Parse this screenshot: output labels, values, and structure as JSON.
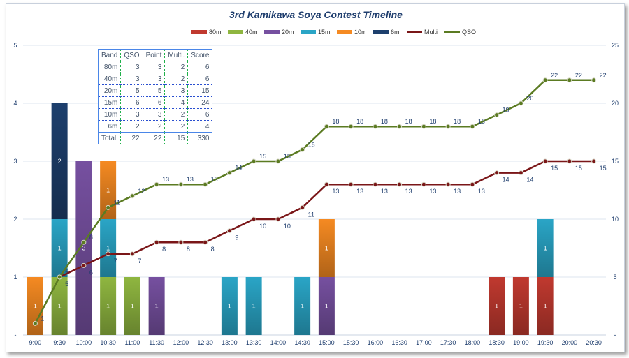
{
  "chart_data": {
    "type": "bar",
    "title": "3rd Kamikawa Soya Contest Timeline",
    "categories": [
      "9:00",
      "9:30",
      "10:00",
      "10:30",
      "11:00",
      "11:30",
      "12:00",
      "12:30",
      "13:00",
      "13:30",
      "14:00",
      "14:30",
      "15:00",
      "15:30",
      "16:00",
      "16:30",
      "17:00",
      "17:30",
      "18:00",
      "18:30",
      "19:00",
      "19:30",
      "20:00",
      "20:30"
    ],
    "y_left": {
      "range": [
        0,
        5
      ],
      "ticks": [
        "-",
        "1",
        "2",
        "3",
        "4",
        "5"
      ]
    },
    "y_right": {
      "range": [
        0,
        25
      ],
      "ticks": [
        "-",
        "5",
        "10",
        "15",
        "20",
        "25"
      ]
    },
    "legend_position": "top",
    "series": [
      {
        "name": "80m",
        "kind": "bar",
        "color": "#c0392f",
        "values": [
          0,
          0,
          0,
          0,
          0,
          0,
          0,
          0,
          0,
          0,
          0,
          0,
          0,
          0,
          0,
          0,
          0,
          0,
          0,
          1,
          1,
          1,
          0,
          0
        ]
      },
      {
        "name": "40m",
        "kind": "bar",
        "color": "#8fb640",
        "values": [
          0,
          1,
          0,
          1,
          1,
          0,
          0,
          0,
          0,
          0,
          0,
          0,
          0,
          0,
          0,
          0,
          0,
          0,
          0,
          0,
          0,
          0,
          0,
          0
        ]
      },
      {
        "name": "20m",
        "kind": "bar",
        "color": "#7650a0",
        "values": [
          0,
          0,
          3,
          0,
          0,
          1,
          0,
          0,
          0,
          0,
          0,
          0,
          1,
          0,
          0,
          0,
          0,
          0,
          0,
          0,
          0,
          0,
          0,
          0
        ]
      },
      {
        "name": "15m",
        "kind": "bar",
        "color": "#2aa5c6",
        "values": [
          0,
          1,
          0,
          1,
          0,
          0,
          0,
          0,
          1,
          1,
          0,
          1,
          0,
          0,
          0,
          0,
          0,
          0,
          0,
          0,
          0,
          1,
          0,
          0
        ]
      },
      {
        "name": "10m",
        "kind": "bar",
        "color": "#f58a22",
        "values": [
          1,
          0,
          0,
          1,
          0,
          0,
          0,
          0,
          0,
          0,
          0,
          0,
          1,
          0,
          0,
          0,
          0,
          0,
          0,
          0,
          0,
          0,
          0,
          0
        ]
      },
      {
        "name": "6m",
        "kind": "bar",
        "color": "#1d3f6d",
        "values": [
          0,
          2,
          0,
          0,
          0,
          0,
          0,
          0,
          0,
          0,
          0,
          0,
          0,
          0,
          0,
          0,
          0,
          0,
          0,
          0,
          0,
          0,
          0,
          0
        ]
      },
      {
        "name": "Multi",
        "kind": "line",
        "axis": "right",
        "color": "#7a1618",
        "values": [
          1,
          5,
          6,
          7,
          7,
          8,
          8,
          8,
          9,
          10,
          10,
          11,
          13,
          13,
          13,
          13,
          13,
          13,
          13,
          14,
          14,
          15,
          15,
          15
        ]
      },
      {
        "name": "QSO",
        "kind": "line",
        "axis": "right",
        "color": "#5b7b22",
        "values": [
          1,
          5,
          8,
          11,
          12,
          13,
          13,
          13,
          14,
          15,
          15,
          16,
          18,
          18,
          18,
          18,
          18,
          18,
          18,
          19,
          20,
          22,
          22,
          22
        ]
      }
    ]
  },
  "table": {
    "headers": [
      "Band",
      "QSO",
      "Point",
      "Multi.",
      "Score"
    ],
    "rows": [
      [
        "80m",
        "3",
        "3",
        "2",
        "6"
      ],
      [
        "40m",
        "3",
        "3",
        "2",
        "6"
      ],
      [
        "20m",
        "5",
        "5",
        "3",
        "15"
      ],
      [
        "15m",
        "6",
        "6",
        "4",
        "24"
      ],
      [
        "10m",
        "3",
        "3",
        "2",
        "6"
      ],
      [
        "6m",
        "2",
        "2",
        "2",
        "4"
      ]
    ],
    "total": [
      "Total",
      "22",
      "22",
      "15",
      "330"
    ]
  }
}
